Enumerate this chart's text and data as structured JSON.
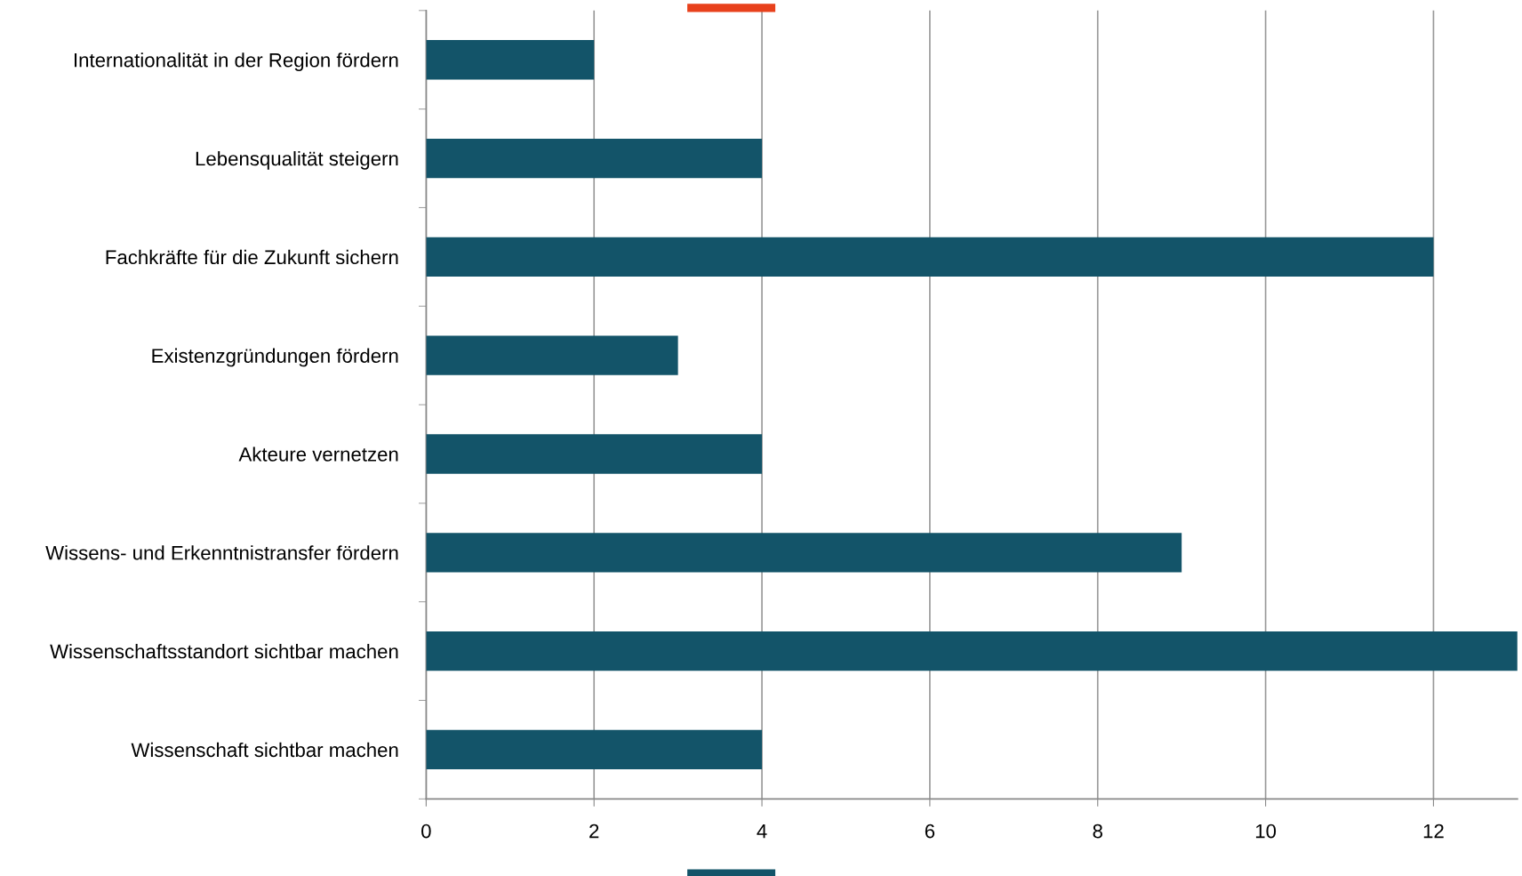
{
  "chart_data": {
    "type": "bar",
    "orientation": "horizontal",
    "categories": [
      "Internationalität in der Region fördern",
      "Lebensqualität steigern",
      "Fachkräfte für die Zukunft sichern",
      "Existenzgründungen fördern",
      "Akteure vernetzen",
      "Wissens- und Erkenntnistransfer fördern",
      "Wissenschaftsstandort sichtbar machen",
      "Wissenschaft sichtbar machen"
    ],
    "values": [
      2,
      4,
      12,
      3,
      4,
      9,
      13,
      4
    ],
    "color": "#135469",
    "xlim": [
      0,
      13
    ],
    "xticks": [
      0,
      2,
      4,
      6,
      8,
      10,
      12
    ],
    "grid": "x"
  }
}
